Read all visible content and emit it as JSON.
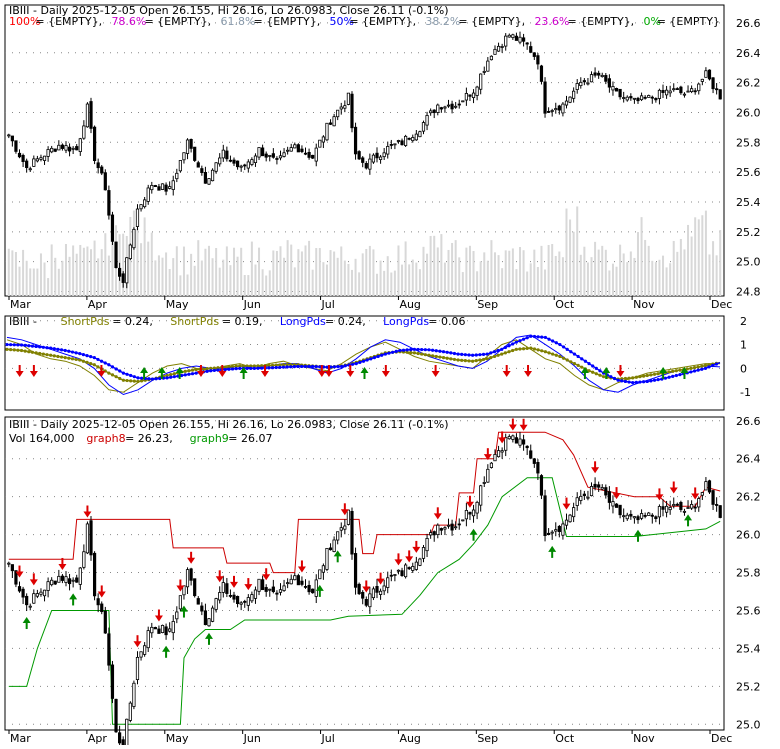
{
  "chart_data": [
    {
      "type": "candlestick",
      "symbol": "IBIII",
      "header": {
        "prefix": "IBIII - Daily 2025-12-05 Open 26.155, Hi 26.16, Lo 26.0983, Close 26.11 (-0.1%)"
      },
      "fib_legend": [
        {
          "label": "100%",
          "value": "{EMPTY}",
          "color": "#ff0000"
        },
        {
          "label": "78.6%",
          "value": "{EMPTY}",
          "color": "#cc00cc"
        },
        {
          "label": "61.8%",
          "value": "{EMPTY}",
          "color": "#8899aa"
        },
        {
          "label": "50%",
          "value": "{EMPTY}",
          "color": "#0000ff"
        },
        {
          "label": "38.2%",
          "value": "{EMPTY}",
          "color": "#8899aa"
        },
        {
          "label": "23.6%",
          "value": "{EMPTY}",
          "color": "#cc00cc"
        },
        {
          "label": "0%",
          "value": "{EMPTY}",
          "color": "#00aa00"
        }
      ],
      "y_ticks": [
        "26.6",
        "26.4",
        "26.2",
        "26.0",
        "25.8",
        "25.6",
        "25.4",
        "25.2",
        "25.0",
        "24.8"
      ],
      "y_tick_values": [
        26.6,
        26.4,
        26.2,
        26.0,
        25.8,
        25.6,
        25.4,
        25.2,
        25.0,
        24.8
      ],
      "ylim": [
        24.77,
        26.72
      ],
      "x_labels": [
        "Mar",
        "Apr",
        "May",
        "Jun",
        "Jul",
        "Aug",
        "Sep",
        "Oct",
        "Nov",
        "Dec"
      ],
      "close_path": [
        [
          0,
          25.85
        ],
        [
          5,
          25.63
        ],
        [
          10,
          25.72
        ],
        [
          14,
          25.78
        ],
        [
          19,
          25.75
        ],
        [
          22,
          26.03
        ],
        [
          24,
          25.7
        ],
        [
          27,
          25.5
        ],
        [
          30,
          24.95
        ],
        [
          32,
          24.88
        ],
        [
          36,
          25.35
        ],
        [
          40,
          25.52
        ],
        [
          45,
          25.48
        ],
        [
          50,
          25.8
        ],
        [
          55,
          25.55
        ],
        [
          60,
          25.72
        ],
        [
          65,
          25.62
        ],
        [
          70,
          25.75
        ],
        [
          75,
          25.66
        ],
        [
          80,
          25.78
        ],
        [
          85,
          25.7
        ],
        [
          90,
          25.95
        ],
        [
          95,
          26.1
        ],
        [
          97,
          25.7
        ],
        [
          100,
          25.65
        ],
        [
          105,
          25.75
        ],
        [
          110,
          25.8
        ],
        [
          115,
          25.9
        ],
        [
          120,
          26.05
        ],
        [
          125,
          26.05
        ],
        [
          130,
          26.15
        ],
        [
          135,
          26.4
        ],
        [
          140,
          26.52
        ],
        [
          145,
          26.45
        ],
        [
          148,
          26.35
        ],
        [
          150,
          26.02
        ],
        [
          155,
          26.05
        ],
        [
          160,
          26.2
        ],
        [
          165,
          26.25
        ],
        [
          170,
          26.12
        ],
        [
          175,
          26.07
        ],
        [
          180,
          26.1
        ],
        [
          185,
          26.15
        ],
        [
          190,
          26.12
        ],
        [
          195,
          26.25
        ],
        [
          199,
          26.11
        ]
      ],
      "volume_profile": [
        0.25,
        0.3,
        0.2,
        0.4,
        0.35,
        0.3,
        0.45,
        0.6,
        0.9,
        0.7,
        0.5,
        0.4,
        0.3,
        0.35,
        0.3,
        0.25,
        0.3,
        0.35,
        0.3,
        0.4,
        0.3,
        0.35,
        0.4,
        0.3,
        0.35,
        0.3,
        0.3,
        0.35,
        0.4,
        0.5,
        0.45,
        0.35,
        0.3,
        0.4,
        0.3,
        0.35,
        0.3,
        0.3,
        0.4,
        0.9,
        0.5,
        0.4,
        0.35,
        0.5,
        0.7,
        0.45,
        0.4,
        0.6,
        0.8,
        0.5
      ]
    },
    {
      "type": "line",
      "header": [
        {
          "text": "IBIII - ",
          "color": "#000000"
        },
        {
          "text": "ShortPds",
          "color": "#808000"
        },
        {
          "text": " = 0.24, ",
          "color": "#000000"
        },
        {
          "text": "ShortPds",
          "color": "#808000"
        },
        {
          "text": " = 0.19, ",
          "color": "#000000"
        },
        {
          "text": "LongPds",
          "color": "#0000ff"
        },
        {
          "text": " = 0.24, ",
          "color": "#000000"
        },
        {
          "text": "LongPds",
          "color": "#0000ff"
        },
        {
          "text": " = 0.06",
          "color": "#000000"
        }
      ],
      "y_ticks": [
        "2",
        "1",
        "0",
        "-1"
      ],
      "y_tick_values": [
        2,
        1,
        0,
        -1
      ],
      "ylim": [
        -1.75,
        2.2
      ],
      "series": [
        {
          "color": "#808000",
          "values": [
            1.2,
            1.0,
            0.6,
            0.4,
            0.3,
            0.1,
            -0.3,
            -0.9,
            -1.0,
            -0.6,
            -0.2,
            0.1,
            0.2,
            0.0,
            -0.1,
            0.1,
            0.2,
            0.0,
            0.2,
            0.3,
            0.1,
            0.0,
            -0.1,
            0.2,
            0.6,
            0.9,
            1.1,
            0.8,
            0.5,
            0.3,
            0.2,
            0.1,
            0.0,
            0.5,
            1.0,
            1.2,
            0.8,
            0.4,
            0.2,
            -0.3,
            -0.7,
            -0.9,
            -0.6,
            -0.4,
            -0.2,
            -0.1,
            0.0,
            0.1,
            0.2,
            0.19
          ]
        },
        {
          "color": "#0000ff",
          "values": [
            1.3,
            1.2,
            1.0,
            0.8,
            0.6,
            0.4,
            0.0,
            -0.7,
            -1.1,
            -0.9,
            -0.5,
            -0.2,
            0.0,
            0.1,
            0.0,
            0.0,
            0.1,
            0.0,
            0.1,
            0.2,
            0.2,
            0.0,
            -0.2,
            0.0,
            0.4,
            0.9,
            1.2,
            1.1,
            0.8,
            0.5,
            0.3,
            0.1,
            0.0,
            0.3,
            0.8,
            1.3,
            1.4,
            1.0,
            0.6,
            0.1,
            -0.5,
            -0.9,
            -1.0,
            -0.7,
            -0.5,
            -0.3,
            -0.1,
            0.0,
            0.1,
            0.06
          ]
        },
        {
          "color": "#808000",
          "values": [
            0.8,
            0.75,
            0.65,
            0.55,
            0.45,
            0.35,
            0.15,
            -0.2,
            -0.5,
            -0.55,
            -0.45,
            -0.3,
            -0.15,
            -0.05,
            0.0,
            0.05,
            0.1,
            0.1,
            0.12,
            0.15,
            0.15,
            0.1,
            0.05,
            0.1,
            0.25,
            0.45,
            0.65,
            0.7,
            0.65,
            0.55,
            0.45,
            0.35,
            0.3,
            0.4,
            0.6,
            0.8,
            0.85,
            0.7,
            0.5,
            0.2,
            -0.1,
            -0.35,
            -0.45,
            -0.4,
            -0.3,
            -0.2,
            -0.1,
            0.0,
            0.12,
            0.24
          ],
          "dotted": true
        },
        {
          "color": "#0000ff",
          "values": [
            1.0,
            0.98,
            0.92,
            0.85,
            0.75,
            0.62,
            0.45,
            0.15,
            -0.2,
            -0.4,
            -0.45,
            -0.4,
            -0.3,
            -0.2,
            -0.1,
            -0.05,
            0.0,
            0.0,
            0.02,
            0.05,
            0.08,
            0.08,
            0.05,
            0.08,
            0.2,
            0.4,
            0.6,
            0.75,
            0.8,
            0.78,
            0.7,
            0.6,
            0.55,
            0.6,
            0.8,
            1.1,
            1.35,
            1.3,
            1.0,
            0.6,
            0.2,
            -0.2,
            -0.5,
            -0.6,
            -0.55,
            -0.45,
            -0.3,
            -0.15,
            0.0,
            0.24
          ],
          "dotted": true
        }
      ],
      "signals": [
        {
          "pos": 0.015,
          "dir": "down"
        },
        {
          "pos": 0.035,
          "dir": "down"
        },
        {
          "pos": 0.13,
          "dir": "down"
        },
        {
          "pos": 0.19,
          "dir": "up"
        },
        {
          "pos": 0.215,
          "dir": "up"
        },
        {
          "pos": 0.24,
          "dir": "up"
        },
        {
          "pos": 0.27,
          "dir": "down"
        },
        {
          "pos": 0.3,
          "dir": "down"
        },
        {
          "pos": 0.33,
          "dir": "up"
        },
        {
          "pos": 0.36,
          "dir": "down"
        },
        {
          "pos": 0.44,
          "dir": "down"
        },
        {
          "pos": 0.45,
          "dir": "down"
        },
        {
          "pos": 0.48,
          "dir": "down"
        },
        {
          "pos": 0.5,
          "dir": "up"
        },
        {
          "pos": 0.53,
          "dir": "down"
        },
        {
          "pos": 0.6,
          "dir": "down"
        },
        {
          "pos": 0.7,
          "dir": "down"
        },
        {
          "pos": 0.73,
          "dir": "down"
        },
        {
          "pos": 0.81,
          "dir": "up"
        },
        {
          "pos": 0.84,
          "dir": "up"
        },
        {
          "pos": 0.86,
          "dir": "down"
        },
        {
          "pos": 0.92,
          "dir": "up"
        },
        {
          "pos": 0.95,
          "dir": "up"
        }
      ]
    },
    {
      "type": "candlestick",
      "header_line1": "IBIII - Daily 2025-12-05 Open 26.155, Hi 26.16, Lo 26.0983, Close 26.11 (-0.1%)",
      "header_line2": [
        {
          "text": "Vol 164,000 ",
          "color": "#000000"
        },
        {
          "text": "graph8",
          "color": "#cc0000"
        },
        {
          "text": " = 26.23, ",
          "color": "#000000"
        },
        {
          "text": "graph9",
          "color": "#009900"
        },
        {
          "text": " = 26.07",
          "color": "#000000"
        }
      ],
      "y_ticks": [
        "26.6",
        "26.4",
        "26.2",
        "26.0",
        "25.8",
        "25.6",
        "25.4",
        "25.2",
        "25.0"
      ],
      "y_tick_values": [
        26.6,
        26.4,
        26.2,
        26.0,
        25.8,
        25.6,
        25.4,
        25.2,
        25.0
      ],
      "ylim": [
        24.97,
        26.62
      ],
      "upper_band": [
        [
          0,
          25.87
        ],
        [
          18,
          25.87
        ],
        [
          19,
          26.08
        ],
        [
          45,
          26.08
        ],
        [
          46,
          25.93
        ],
        [
          60,
          25.93
        ],
        [
          61,
          25.85
        ],
        [
          73,
          25.85
        ],
        [
          74,
          25.8
        ],
        [
          80,
          25.8
        ],
        [
          81,
          26.08
        ],
        [
          98,
          26.08
        ],
        [
          99,
          25.9
        ],
        [
          102,
          25.9
        ],
        [
          103,
          26.0
        ],
        [
          118,
          26.0
        ],
        [
          119,
          26.05
        ],
        [
          125,
          26.05
        ],
        [
          126,
          26.22
        ],
        [
          130,
          26.22
        ],
        [
          131,
          26.4
        ],
        [
          136,
          26.4
        ],
        [
          137,
          26.54
        ],
        [
          150,
          26.54
        ],
        [
          155,
          26.5
        ],
        [
          158,
          26.42
        ],
        [
          162,
          26.25
        ],
        [
          175,
          26.2
        ],
        [
          182,
          26.2
        ],
        [
          185,
          26.15
        ],
        [
          192,
          26.15
        ],
        [
          195,
          26.25
        ],
        [
          199,
          26.23
        ]
      ],
      "lower_band": [
        [
          0,
          25.2
        ],
        [
          5,
          25.2
        ],
        [
          8,
          25.4
        ],
        [
          12,
          25.6
        ],
        [
          20,
          25.6
        ],
        [
          28,
          25.6
        ],
        [
          29,
          25.0
        ],
        [
          48,
          25.0
        ],
        [
          49,
          25.35
        ],
        [
          52,
          25.45
        ],
        [
          55,
          25.5
        ],
        [
          62,
          25.5
        ],
        [
          66,
          25.55
        ],
        [
          90,
          25.55
        ],
        [
          95,
          25.57
        ],
        [
          110,
          25.58
        ],
        [
          115,
          25.68
        ],
        [
          120,
          25.8
        ],
        [
          126,
          25.87
        ],
        [
          130,
          25.95
        ],
        [
          134,
          26.05
        ],
        [
          138,
          26.2
        ],
        [
          145,
          26.3
        ],
        [
          152,
          26.3
        ],
        [
          156,
          25.99
        ],
        [
          175,
          25.99
        ],
        [
          180,
          26.0
        ],
        [
          195,
          26.03
        ],
        [
          199,
          26.07
        ]
      ],
      "signals": [
        {
          "pos": 0.015,
          "dir": "down"
        },
        {
          "pos": 0.025,
          "dir": "up"
        },
        {
          "pos": 0.035,
          "dir": "down"
        },
        {
          "pos": 0.075,
          "dir": "down"
        },
        {
          "pos": 0.09,
          "dir": "up"
        },
        {
          "pos": 0.11,
          "dir": "down"
        },
        {
          "pos": 0.13,
          "dir": "down"
        },
        {
          "pos": 0.155,
          "dir": "up"
        },
        {
          "pos": 0.18,
          "dir": "down"
        },
        {
          "pos": 0.21,
          "dir": "down"
        },
        {
          "pos": 0.22,
          "dir": "up"
        },
        {
          "pos": 0.24,
          "dir": "down"
        },
        {
          "pos": 0.245,
          "dir": "up"
        },
        {
          "pos": 0.255,
          "dir": "down"
        },
        {
          "pos": 0.285,
          "dir": "up"
        },
        {
          "pos": 0.295,
          "dir": "down"
        },
        {
          "pos": 0.315,
          "dir": "down"
        },
        {
          "pos": 0.335,
          "dir": "down"
        },
        {
          "pos": 0.36,
          "dir": "down"
        },
        {
          "pos": 0.41,
          "dir": "down"
        },
        {
          "pos": 0.435,
          "dir": "up"
        },
        {
          "pos": 0.46,
          "dir": "up"
        },
        {
          "pos": 0.47,
          "dir": "down"
        },
        {
          "pos": 0.5,
          "dir": "down"
        },
        {
          "pos": 0.52,
          "dir": "down"
        },
        {
          "pos": 0.545,
          "dir": "down"
        },
        {
          "pos": 0.56,
          "dir": "down"
        },
        {
          "pos": 0.575,
          "dir": "down"
        },
        {
          "pos": 0.6,
          "dir": "down"
        },
        {
          "pos": 0.645,
          "dir": "down"
        },
        {
          "pos": 0.65,
          "dir": "up"
        },
        {
          "pos": 0.67,
          "dir": "down"
        },
        {
          "pos": 0.69,
          "dir": "down"
        },
        {
          "pos": 0.705,
          "dir": "down"
        },
        {
          "pos": 0.72,
          "dir": "down"
        },
        {
          "pos": 0.76,
          "dir": "up"
        },
        {
          "pos": 0.78,
          "dir": "down"
        },
        {
          "pos": 0.82,
          "dir": "down"
        },
        {
          "pos": 0.85,
          "dir": "down"
        },
        {
          "pos": 0.88,
          "dir": "up"
        },
        {
          "pos": 0.91,
          "dir": "down"
        },
        {
          "pos": 0.93,
          "dir": "down"
        },
        {
          "pos": 0.95,
          "dir": "up"
        },
        {
          "pos": 0.96,
          "dir": "down"
        }
      ]
    }
  ],
  "colors": {
    "up": "#000000",
    "down": "#000000",
    "grid": "#888888",
    "volume": "#d8d8d8",
    "upper_band": "#cc0000",
    "lower_band": "#009900",
    "arrow_down": "#dd0000",
    "arrow_up": "#008800"
  }
}
